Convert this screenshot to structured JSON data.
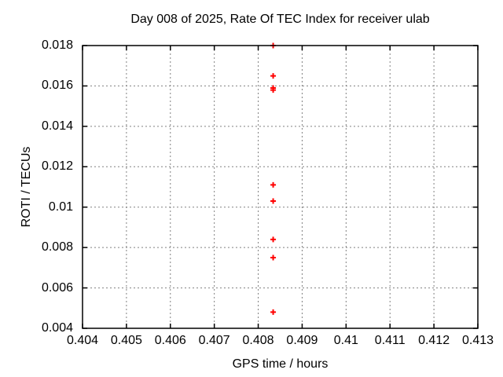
{
  "chart_data": {
    "type": "scatter",
    "title": "Day 008 of 2025, Rate Of TEC Index for receiver ulab",
    "xlabel": "GPS time / hours",
    "ylabel": "ROTI / TECUs",
    "xlim": [
      0.404,
      0.413
    ],
    "ylim": [
      0.004,
      0.018
    ],
    "x_tick_labels": [
      "0.404",
      "0.405",
      "0.406",
      "0.407",
      "0.408",
      "0.409",
      "0.41",
      "0.411",
      "0.412",
      "0.413"
    ],
    "y_tick_labels": [
      "0.004",
      "0.006",
      "0.008",
      "0.01",
      "0.012",
      "0.014",
      "0.016",
      "0.018"
    ],
    "grid": true,
    "legend": "none",
    "marker": "plus",
    "colors": {
      "marker": "#ff0000",
      "grid": "#808080",
      "axis": "#000000",
      "background": "#ffffff"
    },
    "series": [
      {
        "name": "ROTI",
        "x": [
          0.40834,
          0.40834,
          0.40834,
          0.40834,
          0.40834,
          0.40834,
          0.40834,
          0.40834,
          0.40834
        ],
        "y": [
          0.018,
          0.0165,
          0.0159,
          0.0158,
          0.0111,
          0.0103,
          0.0084,
          0.0075,
          0.0048
        ]
      }
    ]
  }
}
